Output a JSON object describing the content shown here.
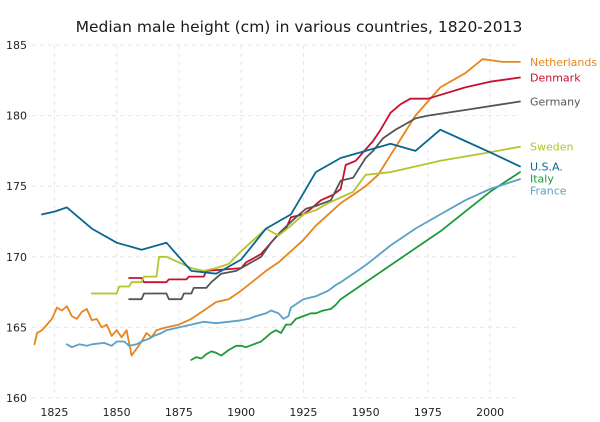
{
  "chart_data": {
    "type": "line",
    "title": "Median male height (cm) in various countries, 1820-2013",
    "xlabel": "",
    "ylabel": "",
    "xlim": [
      1816,
      2012
    ],
    "ylim": [
      160,
      185
    ],
    "x_ticks": [
      1825,
      1850,
      1875,
      1900,
      1925,
      1950,
      1975,
      2000
    ],
    "y_ticks": [
      160,
      165,
      170,
      175,
      180,
      185
    ],
    "grid": true,
    "legend": "labels at right end of each line",
    "series": [
      {
        "name": "Netherlands",
        "color": "#e8851a",
        "points": [
          [
            1817,
            163.8
          ],
          [
            1818,
            164.6
          ],
          [
            1820,
            164.8
          ],
          [
            1822,
            165.2
          ],
          [
            1824,
            165.6
          ],
          [
            1826,
            166.4
          ],
          [
            1828,
            166.2
          ],
          [
            1830,
            166.5
          ],
          [
            1832,
            165.8
          ],
          [
            1834,
            165.6
          ],
          [
            1836,
            166.1
          ],
          [
            1838,
            166.3
          ],
          [
            1840,
            165.5
          ],
          [
            1842,
            165.6
          ],
          [
            1844,
            165.0
          ],
          [
            1846,
            165.2
          ],
          [
            1848,
            164.4
          ],
          [
            1850,
            164.8
          ],
          [
            1852,
            164.3
          ],
          [
            1854,
            164.8
          ],
          [
            1856,
            163.0
          ],
          [
            1858,
            163.5
          ],
          [
            1860,
            164.0
          ],
          [
            1862,
            164.6
          ],
          [
            1864,
            164.3
          ],
          [
            1866,
            164.8
          ],
          [
            1868,
            164.9
          ],
          [
            1870,
            165.0
          ],
          [
            1875,
            165.2
          ],
          [
            1880,
            165.6
          ],
          [
            1885,
            166.2
          ],
          [
            1890,
            166.8
          ],
          [
            1895,
            167.0
          ],
          [
            1900,
            167.6
          ],
          [
            1905,
            168.3
          ],
          [
            1910,
            169.0
          ],
          [
            1915,
            169.6
          ],
          [
            1920,
            170.4
          ],
          [
            1925,
            171.2
          ],
          [
            1930,
            172.2
          ],
          [
            1935,
            173.0
          ],
          [
            1940,
            173.8
          ],
          [
            1945,
            174.4
          ],
          [
            1950,
            175.0
          ],
          [
            1955,
            175.8
          ],
          [
            1960,
            177.2
          ],
          [
            1965,
            178.6
          ],
          [
            1970,
            180.0
          ],
          [
            1975,
            181.0
          ],
          [
            1980,
            182.0
          ],
          [
            1990,
            183.0
          ],
          [
            1997,
            184.0
          ],
          [
            2005,
            183.8
          ],
          [
            2012,
            183.8
          ]
        ]
      },
      {
        "name": "Denmark",
        "color": "#c8102e",
        "points": [
          [
            1855,
            168.5
          ],
          [
            1860,
            168.5
          ],
          [
            1861,
            168.2
          ],
          [
            1870,
            168.2
          ],
          [
            1871,
            168.4
          ],
          [
            1878,
            168.4
          ],
          [
            1879,
            168.6
          ],
          [
            1885,
            168.6
          ],
          [
            1886,
            169.0
          ],
          [
            1900,
            169.2
          ],
          [
            1902,
            169.6
          ],
          [
            1908,
            170.2
          ],
          [
            1912,
            171.0
          ],
          [
            1915,
            171.6
          ],
          [
            1918,
            172.0
          ],
          [
            1920,
            172.8
          ],
          [
            1925,
            173.0
          ],
          [
            1928,
            173.4
          ],
          [
            1932,
            174.0
          ],
          [
            1937,
            174.4
          ],
          [
            1940,
            174.8
          ],
          [
            1942,
            176.5
          ],
          [
            1946,
            176.8
          ],
          [
            1950,
            177.6
          ],
          [
            1953,
            178.2
          ],
          [
            1956,
            179.0
          ],
          [
            1960,
            180.2
          ],
          [
            1964,
            180.8
          ],
          [
            1968,
            181.2
          ],
          [
            1975,
            181.2
          ],
          [
            1990,
            182.0
          ],
          [
            2000,
            182.4
          ],
          [
            2012,
            182.7
          ]
        ]
      },
      {
        "name": "Germany",
        "color": "#555555",
        "points": [
          [
            1855,
            167.0
          ],
          [
            1860,
            167.0
          ],
          [
            1861,
            167.4
          ],
          [
            1870,
            167.4
          ],
          [
            1871,
            167.0
          ],
          [
            1876,
            167.0
          ],
          [
            1877,
            167.4
          ],
          [
            1880,
            167.4
          ],
          [
            1881,
            167.8
          ],
          [
            1886,
            167.8
          ],
          [
            1888,
            168.2
          ],
          [
            1892,
            168.8
          ],
          [
            1898,
            169.0
          ],
          [
            1902,
            169.4
          ],
          [
            1908,
            170.0
          ],
          [
            1912,
            171.0
          ],
          [
            1916,
            171.8
          ],
          [
            1922,
            172.8
          ],
          [
            1926,
            173.4
          ],
          [
            1930,
            173.6
          ],
          [
            1936,
            174.0
          ],
          [
            1940,
            175.4
          ],
          [
            1945,
            175.6
          ],
          [
            1950,
            177.0
          ],
          [
            1953,
            177.5
          ],
          [
            1957,
            178.4
          ],
          [
            1962,
            179.0
          ],
          [
            1966,
            179.4
          ],
          [
            1970,
            179.8
          ],
          [
            1975,
            180.0
          ],
          [
            1990,
            180.4
          ],
          [
            2012,
            181.0
          ]
        ]
      },
      {
        "name": "Sweden",
        "color": "#b5c42a",
        "points": [
          [
            1840,
            167.4
          ],
          [
            1850,
            167.4
          ],
          [
            1851,
            167.9
          ],
          [
            1855,
            167.9
          ],
          [
            1856,
            168.2
          ],
          [
            1860,
            168.2
          ],
          [
            1861,
            168.6
          ],
          [
            1866,
            168.6
          ],
          [
            1867,
            170.0
          ],
          [
            1870,
            170.0
          ],
          [
            1875,
            169.6
          ],
          [
            1880,
            169.2
          ],
          [
            1885,
            169.0
          ],
          [
            1890,
            169.2
          ],
          [
            1895,
            169.5
          ],
          [
            1900,
            170.4
          ],
          [
            1905,
            171.2
          ],
          [
            1910,
            172.0
          ],
          [
            1915,
            171.5
          ],
          [
            1920,
            172.2
          ],
          [
            1925,
            173.0
          ],
          [
            1930,
            173.3
          ],
          [
            1935,
            173.8
          ],
          [
            1940,
            174.2
          ],
          [
            1945,
            174.6
          ],
          [
            1950,
            175.8
          ],
          [
            1960,
            176.0
          ],
          [
            1980,
            176.8
          ],
          [
            2000,
            177.4
          ],
          [
            2012,
            177.8
          ]
        ]
      },
      {
        "name": "U.S.A.",
        "color": "#0a6690",
        "points": [
          [
            1820,
            173.0
          ],
          [
            1825,
            173.2
          ],
          [
            1830,
            173.5
          ],
          [
            1840,
            172.0
          ],
          [
            1850,
            171.0
          ],
          [
            1860,
            170.5
          ],
          [
            1870,
            171.0
          ],
          [
            1880,
            169.0
          ],
          [
            1890,
            168.8
          ],
          [
            1900,
            169.8
          ],
          [
            1910,
            172.0
          ],
          [
            1920,
            173.0
          ],
          [
            1925,
            174.5
          ],
          [
            1930,
            176.0
          ],
          [
            1940,
            177.0
          ],
          [
            1950,
            177.5
          ],
          [
            1960,
            178.0
          ],
          [
            1970,
            177.5
          ],
          [
            1980,
            179.0
          ],
          [
            1990,
            178.2
          ],
          [
            2000,
            177.4
          ],
          [
            2012,
            176.4
          ]
        ]
      },
      {
        "name": "Italy",
        "color": "#1e9a3a",
        "points": [
          [
            1880,
            162.7
          ],
          [
            1882,
            162.9
          ],
          [
            1884,
            162.8
          ],
          [
            1886,
            163.1
          ],
          [
            1888,
            163.3
          ],
          [
            1890,
            163.2
          ],
          [
            1892,
            163.0
          ],
          [
            1895,
            163.4
          ],
          [
            1898,
            163.7
          ],
          [
            1900,
            163.7
          ],
          [
            1902,
            163.6
          ],
          [
            1905,
            163.8
          ],
          [
            1908,
            164.0
          ],
          [
            1910,
            164.3
          ],
          [
            1912,
            164.6
          ],
          [
            1914,
            164.8
          ],
          [
            1916,
            164.6
          ],
          [
            1918,
            165.2
          ],
          [
            1920,
            165.2
          ],
          [
            1922,
            165.6
          ],
          [
            1925,
            165.8
          ],
          [
            1928,
            166.0
          ],
          [
            1930,
            166.0
          ],
          [
            1933,
            166.2
          ],
          [
            1936,
            166.3
          ],
          [
            1938,
            166.6
          ],
          [
            1940,
            167.0
          ],
          [
            1950,
            168.2
          ],
          [
            1960,
            169.4
          ],
          [
            1970,
            170.6
          ],
          [
            1980,
            171.8
          ],
          [
            1990,
            173.2
          ],
          [
            2000,
            174.6
          ],
          [
            2012,
            176.0
          ]
        ]
      },
      {
        "name": "France",
        "color": "#5aa0c8",
        "points": [
          [
            1830,
            163.8
          ],
          [
            1832,
            163.6
          ],
          [
            1835,
            163.8
          ],
          [
            1838,
            163.7
          ],
          [
            1840,
            163.8
          ],
          [
            1845,
            163.9
          ],
          [
            1848,
            163.7
          ],
          [
            1850,
            164.0
          ],
          [
            1853,
            164.0
          ],
          [
            1855,
            163.7
          ],
          [
            1858,
            163.8
          ],
          [
            1860,
            164.0
          ],
          [
            1863,
            164.2
          ],
          [
            1865,
            164.4
          ],
          [
            1868,
            164.6
          ],
          [
            1870,
            164.8
          ],
          [
            1875,
            165.0
          ],
          [
            1880,
            165.2
          ],
          [
            1885,
            165.4
          ],
          [
            1890,
            165.3
          ],
          [
            1895,
            165.4
          ],
          [
            1900,
            165.5
          ],
          [
            1903,
            165.6
          ],
          [
            1906,
            165.8
          ],
          [
            1910,
            166.0
          ],
          [
            1912,
            166.2
          ],
          [
            1915,
            166.0
          ],
          [
            1917,
            165.6
          ],
          [
            1919,
            165.8
          ],
          [
            1920,
            166.4
          ],
          [
            1925,
            167.0
          ],
          [
            1930,
            167.2
          ],
          [
            1935,
            167.6
          ],
          [
            1938,
            168.0
          ],
          [
            1940,
            168.2
          ],
          [
            1945,
            168.8
          ],
          [
            1950,
            169.4
          ],
          [
            1960,
            170.8
          ],
          [
            1970,
            172.0
          ],
          [
            1980,
            173.0
          ],
          [
            1990,
            174.0
          ],
          [
            2000,
            174.8
          ],
          [
            2012,
            175.5
          ]
        ]
      }
    ]
  }
}
